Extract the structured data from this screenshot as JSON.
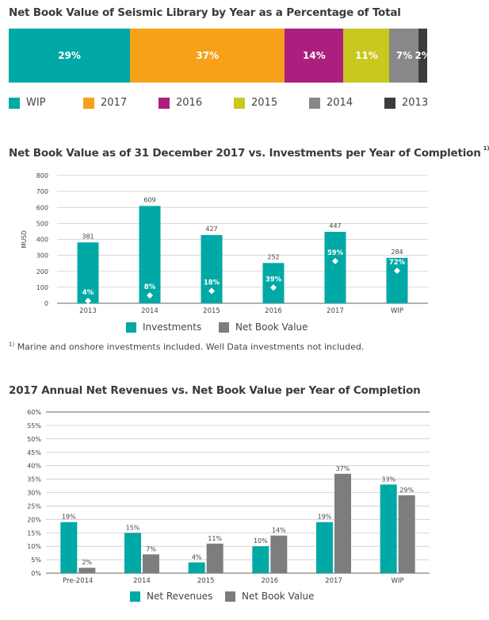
{
  "colors": {
    "teal": "#00a9a5",
    "orange": "#f7a11a",
    "magenta": "#ac1f7e",
    "yellowgreen": "#c8c81e",
    "gray": "#888888",
    "dark": "#3c3c3c",
    "nbv_gray": "#7d7d7d",
    "axis": "#666666",
    "grid": "#cccccc"
  },
  "chart_data": [
    {
      "type": "bar",
      "subtype": "stacked-100",
      "title": "Net Book Value of Seismic Library by Year as a Percentage of Total",
      "segments": [
        {
          "label": "WIP",
          "value": 29,
          "display": "29%",
          "color": "#00a9a5"
        },
        {
          "label": "2017",
          "value": 37,
          "display": "37%",
          "color": "#f7a11a"
        },
        {
          "label": "2016",
          "value": 14,
          "display": "14%",
          "color": "#ac1f7e"
        },
        {
          "label": "2015",
          "value": 11,
          "display": "11%",
          "color": "#c8c81e"
        },
        {
          "label": "2014",
          "value": 7,
          "display": "7%",
          "color": "#888888"
        },
        {
          "label": "2013",
          "value": 2,
          "display": "2%",
          "color": "#3c3c3c"
        }
      ],
      "legend_placement": "bottom"
    },
    {
      "type": "bar",
      "title": "Net Book Value as of 31 December 2017 vs. Investments per Year of Completion",
      "title_footnote_mark": "1)",
      "ylabel": "MUSD",
      "ylim": [
        0,
        800
      ],
      "yticks": [
        "0",
        "100",
        "200",
        "300",
        "400",
        "500",
        "600",
        "700",
        "800"
      ],
      "categories": [
        "2013",
        "2014",
        "2015",
        "2016",
        "2017",
        "WIP"
      ],
      "series": [
        {
          "name": "Investments",
          "color": "#00a9a5",
          "values": [
            381,
            609,
            427,
            252,
            447,
            284
          ],
          "labels": [
            "381",
            "609",
            "427",
            "252",
            "447",
            "284"
          ]
        }
      ],
      "nbv_markers": {
        "percent_labels": [
          "4%",
          "8%",
          "18%",
          "39%",
          "59%",
          "72%"
        ],
        "values": [
          15,
          49,
          77,
          98,
          264,
          204
        ]
      },
      "legend": [
        "Investments",
        "Net Book Value"
      ],
      "grid": true,
      "footnote_mark": "1)",
      "footnote": "Marine and onshore investments included. Well Data investments not included."
    },
    {
      "type": "bar",
      "title": "2017 Annual Net Revenues vs. Net Book Value per Year of Completion",
      "ylim": [
        0,
        60
      ],
      "yticks": [
        "0%",
        "5%",
        "10%",
        "15%",
        "20%",
        "25%",
        "30%",
        "35%",
        "40%",
        "45%",
        "50%",
        "55%",
        "60%"
      ],
      "categories": [
        "Pre-2014",
        "2014",
        "2015",
        "2016",
        "2017",
        "WIP"
      ],
      "series": [
        {
          "name": "Net Revenues",
          "color": "#00a9a5",
          "values": [
            19,
            15,
            4,
            10,
            19,
            33
          ],
          "labels": [
            "19%",
            "15%",
            "4%",
            "10%",
            "19%",
            "33%"
          ]
        },
        {
          "name": "Net Book Value",
          "color": "#7d7d7d",
          "values": [
            2,
            7,
            11,
            14,
            37,
            29
          ],
          "labels": [
            "2%",
            "7%",
            "11%",
            "14%",
            "37%",
            "29%"
          ]
        }
      ],
      "grid": true,
      "legend_placement": "bottom"
    }
  ]
}
